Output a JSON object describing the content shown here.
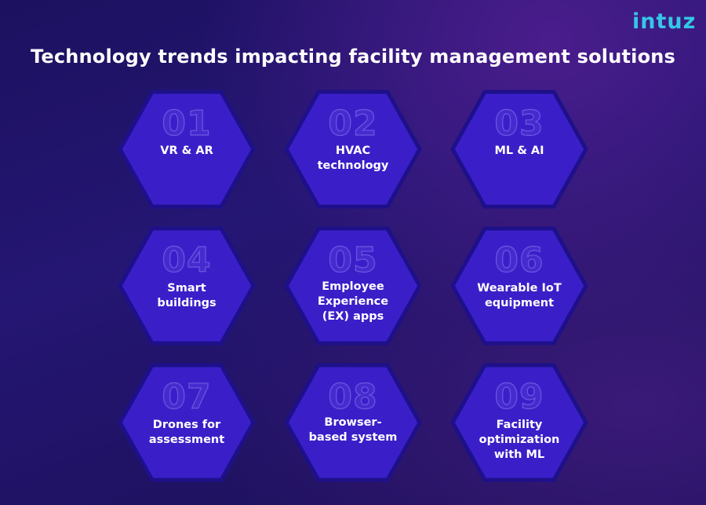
{
  "brand": {
    "logo": "intuz"
  },
  "title": "Technology trends impacting facility management solutions",
  "items": [
    {
      "num": "01",
      "label": "VR & AR"
    },
    {
      "num": "02",
      "label": "HVAC technology"
    },
    {
      "num": "03",
      "label": "ML & AI"
    },
    {
      "num": "04",
      "label": "Smart buildings"
    },
    {
      "num": "05",
      "label": "Employee Experience (EX) apps"
    },
    {
      "num": "06",
      "label": "Wearable IoT equipment"
    },
    {
      "num": "07",
      "label": "Drones for assessment"
    },
    {
      "num": "08",
      "label": "Browser-based system"
    },
    {
      "num": "09",
      "label": "Facility optimization with ML"
    }
  ],
  "colors": {
    "hex_fill": "#3a1fc9",
    "hex_border": "#1e108a",
    "logo": "#35c7e6"
  }
}
